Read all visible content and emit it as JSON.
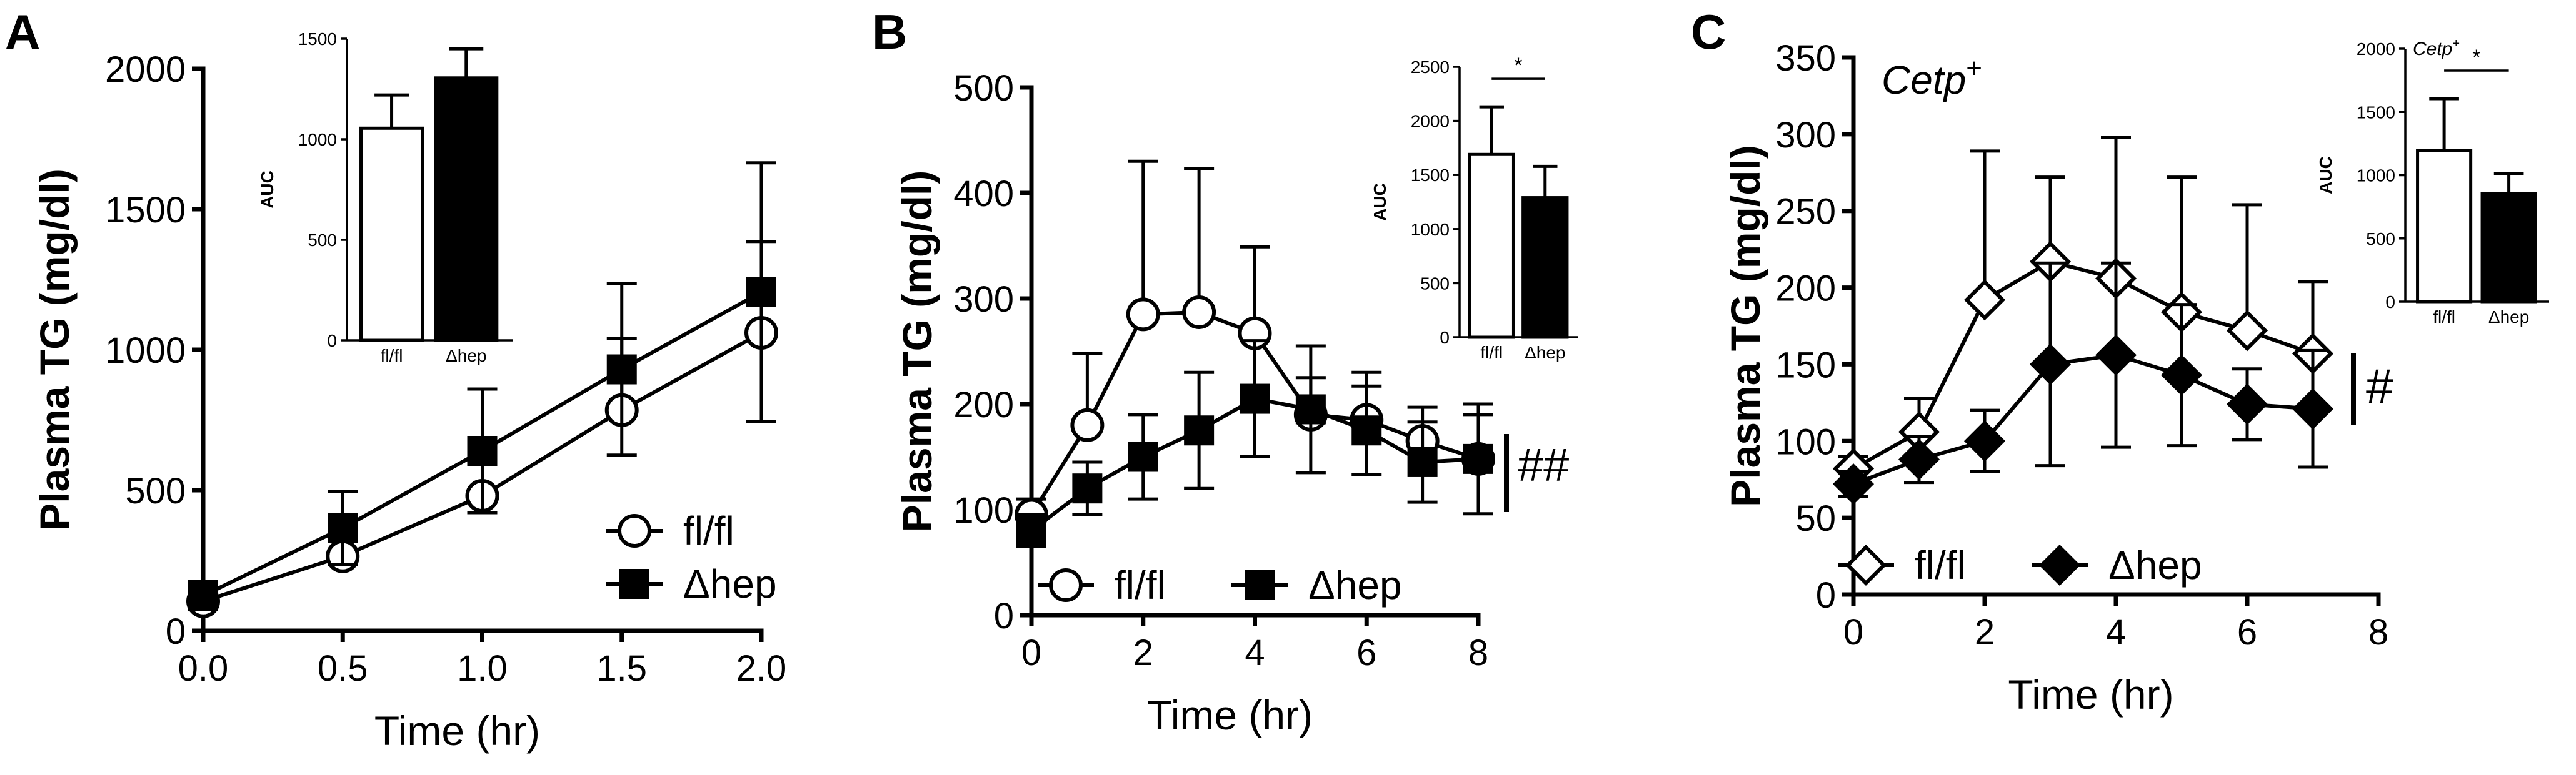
{
  "chart_data": [
    {
      "panel": "A",
      "type": "line",
      "xlabel": "Time (hr)",
      "ylabel": "Plasma TG (mg/dl)",
      "xlim": [
        0,
        2
      ],
      "ylim": [
        0,
        2000
      ],
      "xticks": [
        "0.0",
        "0.5",
        "1.0",
        "1.5",
        "2.0"
      ],
      "yticks": [
        "0",
        "500",
        "1000",
        "1500",
        "2000"
      ],
      "legend_position": "bottom-right",
      "series": [
        {
          "name": "fl/fl",
          "marker": "open-circle",
          "x": [
            0,
            0.5,
            1.0,
            1.5,
            2.0
          ],
          "y": [
            105,
            265,
            480,
            785,
            1060
          ],
          "err": [
            65,
            110,
            190,
            255,
            325
          ]
        },
        {
          "name": "Δhep",
          "marker": "filled-square",
          "x": [
            0,
            0.5,
            1.0,
            1.5,
            2.0
          ],
          "y": [
            125,
            365,
            640,
            930,
            1205
          ],
          "err": [
            50,
            130,
            220,
            305,
            460
          ]
        }
      ],
      "inset": {
        "type": "bar",
        "ylabel": "AUC",
        "ylim": [
          0,
          1500
        ],
        "yticks": [
          "0",
          "500",
          "1000",
          "1500"
        ],
        "categories": [
          "fl/fl",
          "Δhep"
        ],
        "values": [
          1055,
          1305
        ],
        "err": [
          165,
          145
        ],
        "fills": [
          "open",
          "filled"
        ],
        "significance": ""
      }
    },
    {
      "panel": "B",
      "type": "line",
      "xlabel": "Time (hr)",
      "ylabel": "Plasma TG (mg/dl)",
      "xlim": [
        0,
        8
      ],
      "ylim": [
        0,
        500
      ],
      "xticks": [
        "0",
        "2",
        "4",
        "6",
        "8"
      ],
      "yticks": [
        "0",
        "100",
        "200",
        "300",
        "400",
        "500"
      ],
      "legend_position": "bottom-left",
      "annotation": "##",
      "series": [
        {
          "name": "fl/fl",
          "marker": "open-circle",
          "x": [
            0,
            1,
            2,
            3,
            4,
            5,
            6,
            7,
            8
          ],
          "y": [
            95,
            180,
            285,
            287,
            267,
            190,
            185,
            165,
            148
          ],
          "err": [
            15,
            68,
            145,
            136,
            82,
            35,
            45,
            32,
            42
          ]
        },
        {
          "name": "Δhep",
          "marker": "filled-square",
          "x": [
            0,
            1,
            2,
            3,
            4,
            5,
            6,
            7,
            8
          ],
          "y": [
            80,
            120,
            150,
            175,
            205,
            195,
            175,
            145,
            148
          ],
          "err": [
            15,
            25,
            40,
            55,
            55,
            60,
            42,
            38,
            52
          ]
        }
      ],
      "inset": {
        "type": "bar",
        "ylabel": "AUC",
        "ylim": [
          0,
          2500
        ],
        "yticks": [
          "0",
          "500",
          "1000",
          "1500",
          "2000",
          "2500"
        ],
        "categories": [
          "fl/fl",
          "Δhep"
        ],
        "values": [
          1690,
          1290
        ],
        "err": [
          440,
          290
        ],
        "fills": [
          "open",
          "filled"
        ],
        "significance": "*"
      }
    },
    {
      "panel": "C",
      "type": "line",
      "subtitle": "Cetp",
      "subtitle_sup": "+",
      "xlabel": "Time (hr)",
      "ylabel": "Plasma TG (mg/dl)",
      "xlim": [
        0,
        8
      ],
      "ylim": [
        0,
        350
      ],
      "xticks": [
        "0",
        "2",
        "4",
        "6",
        "8"
      ],
      "yticks": [
        "0",
        "50",
        "100",
        "150",
        "200",
        "250",
        "300",
        "350"
      ],
      "legend_position": "bottom-left",
      "annotation": "#",
      "series": [
        {
          "name": "fl/fl",
          "marker": "open-diamond",
          "x": [
            0,
            1,
            2,
            3,
            4,
            5,
            6,
            7
          ],
          "y": [
            82,
            106,
            192,
            217,
            206,
            184,
            172,
            157
          ],
          "err": [
            8,
            22,
            97,
            55,
            92,
            88,
            82,
            47
          ]
        },
        {
          "name": "Δhep",
          "marker": "filled-diamond",
          "x": [
            0,
            1,
            2,
            3,
            4,
            5,
            6,
            7
          ],
          "y": [
            72,
            88,
            100,
            150,
            156,
            143,
            124,
            121
          ],
          "err": [
            8,
            15,
            20,
            66,
            60,
            46,
            23,
            38
          ]
        }
      ],
      "inset": {
        "type": "bar",
        "title": "Cetp",
        "title_sup": "+",
        "ylabel": "AUC",
        "ylim": [
          0,
          2000
        ],
        "yticks": [
          "0",
          "500",
          "1000",
          "1500",
          "2000"
        ],
        "categories": [
          "fl/fl",
          "Δhep"
        ],
        "values": [
          1195,
          855
        ],
        "err": [
          410,
          160
        ],
        "fills": [
          "open",
          "filled"
        ],
        "significance": "*"
      }
    }
  ]
}
